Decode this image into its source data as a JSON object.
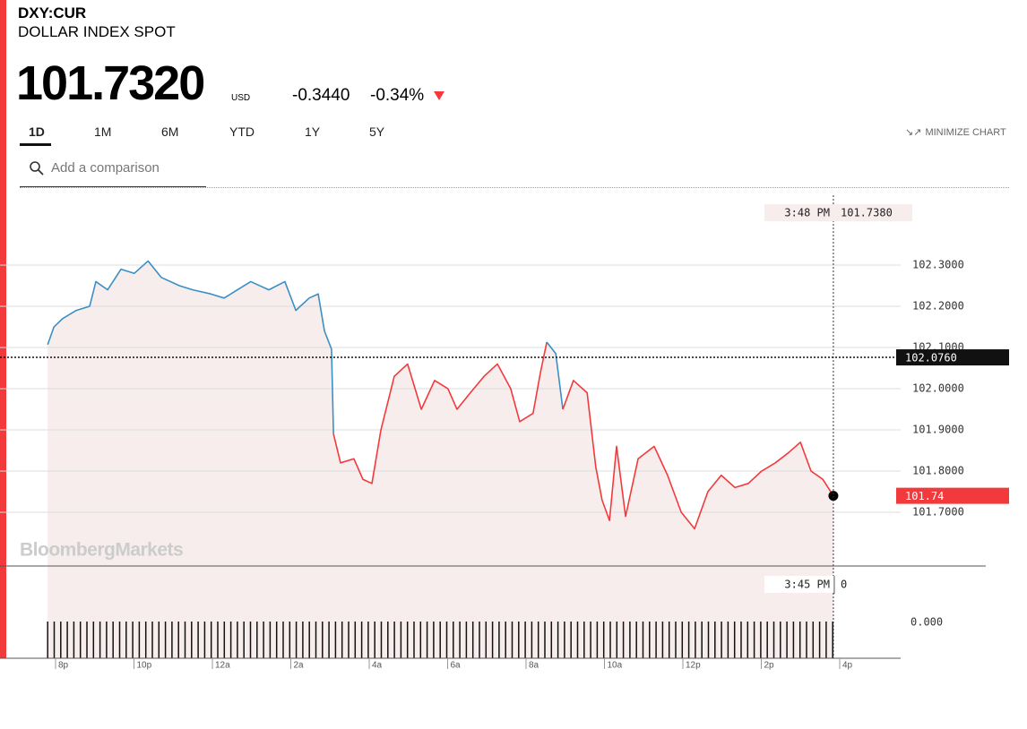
{
  "header": {
    "ticker": "DXY:CUR",
    "name": "DOLLAR INDEX SPOT",
    "price": "101.7320",
    "currency": "USD",
    "change": "-0.3440",
    "change_pct": "-0.34%"
  },
  "tabs": [
    "1D",
    "1M",
    "6M",
    "YTD",
    "1Y",
    "5Y"
  ],
  "minimize": "MINIMIZE CHART",
  "search_placeholder": "Add a comparison",
  "watermark": "BloombergMarkets",
  "chart_data": {
    "type": "line",
    "x": [
      19.73,
      19.89,
      20.11,
      20.46,
      20.8,
      20.96,
      21.26,
      21.6,
      21.94,
      22.29,
      22.63,
      23.09,
      23.43,
      23.89,
      24.23,
      24.57,
      24.91,
      25.37,
      25.78,
      26.06,
      26.4,
      26.63,
      26.79,
      26.97,
      27.02,
      27.2,
      27.54,
      27.77,
      28.0,
      28.23,
      28.57,
      28.91,
      29.26,
      29.6,
      29.94,
      30.17,
      30.51,
      30.86,
      31.2,
      31.54,
      31.77,
      32.11,
      32.3,
      32.46,
      32.69,
      32.87,
      33.14,
      33.49,
      33.71,
      33.87,
      34.06,
      34.24,
      34.47,
      34.79,
      35.2,
      35.54,
      35.89,
      36.23,
      36.57,
      36.91,
      37.26,
      37.6,
      37.94,
      38.29,
      38.63,
      38.93,
      39.2,
      39.5,
      39.77
    ],
    "values": [
      102.107,
      102.15,
      102.17,
      102.19,
      102.2,
      102.26,
      102.24,
      102.29,
      102.28,
      102.31,
      102.27,
      102.25,
      102.24,
      102.23,
      102.22,
      102.24,
      102.26,
      102.24,
      102.26,
      102.19,
      102.22,
      102.23,
      102.14,
      102.096,
      101.89,
      101.82,
      101.83,
      101.78,
      101.77,
      101.9,
      102.03,
      102.06,
      101.95,
      102.02,
      102.0,
      101.95,
      101.99,
      102.03,
      102.06,
      102.0,
      101.92,
      101.94,
      102.04,
      102.113,
      102.085,
      101.95,
      102.02,
      101.99,
      101.81,
      101.73,
      101.68,
      101.86,
      101.69,
      101.83,
      101.86,
      101.79,
      101.7,
      101.66,
      101.75,
      101.79,
      101.76,
      101.77,
      101.8,
      101.82,
      101.845,
      101.87,
      101.8,
      101.78,
      101.74
    ],
    "up_color": "#3a8fc4",
    "down_color": "#f23a3c",
    "fill_color": "#f7eded",
    "xlim": [
      18.514,
      41.486
    ],
    "xticks": [
      {
        "value": 20,
        "label": "8p"
      },
      {
        "value": 22,
        "label": "10p"
      },
      {
        "value": 24,
        "label": "12a"
      },
      {
        "value": 26,
        "label": "2a"
      },
      {
        "value": 28,
        "label": "4a"
      },
      {
        "value": 30,
        "label": "6a"
      },
      {
        "value": 32,
        "label": "8a"
      },
      {
        "value": 34,
        "label": "10a"
      },
      {
        "value": 36,
        "label": "12p"
      },
      {
        "value": 38,
        "label": "2p"
      },
      {
        "value": 40,
        "label": "4p"
      }
    ],
    "ylim": [
      101.5696,
      102.4696
    ],
    "yticks": [
      {
        "value": 102.3,
        "label": "102.3000"
      },
      {
        "value": 102.2,
        "label": "102.2000"
      },
      {
        "value": 102.1,
        "label": "102.1000"
      },
      {
        "value": 102.0,
        "label": "102.0000"
      },
      {
        "value": 101.9,
        "label": "101.9000"
      },
      {
        "value": 101.8,
        "label": "101.8000"
      },
      {
        "value": 101.7,
        "label": "101.7000"
      }
    ],
    "grid": true,
    "previous_close": {
      "value": 102.076,
      "label": "102.0760"
    },
    "last_label": "101.74",
    "crosshair_time": "3:48 PM",
    "crosshair_value": "101.7380",
    "volume_time": "3:45 PM",
    "volume_value": 0,
    "volume_tick": {
      "value": 0,
      "label": "0.000"
    }
  }
}
